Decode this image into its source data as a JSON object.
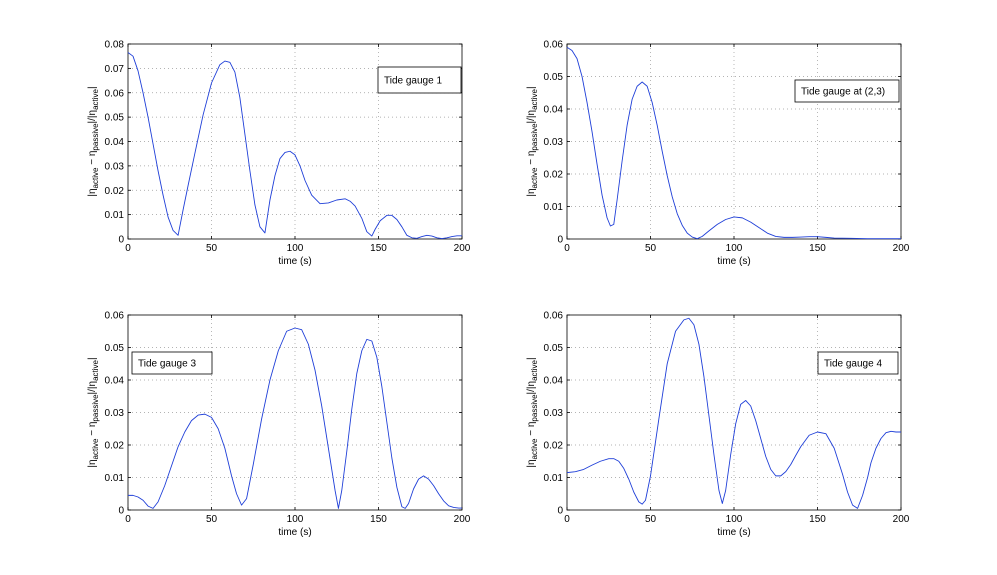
{
  "figure": {
    "background": "#ffffff",
    "line_color": "#1f3fd8"
  },
  "chart_data": [
    {
      "type": "line",
      "legend": "Tide gauge 1",
      "legend_placement": "top-right",
      "xlabel": "time (s)",
      "ylabel": "|η_active − η_passive|/|η_active|",
      "xlim": [
        0,
        200
      ],
      "ylim": [
        0,
        0.08
      ],
      "xticks": [
        0,
        50,
        100,
        150,
        200
      ],
      "yticks": [
        0,
        0.01,
        0.02,
        0.03,
        0.04,
        0.05,
        0.06,
        0.07,
        0.08
      ],
      "grid": true,
      "series": [
        {
          "x": [
            0,
            3,
            6,
            9,
            12,
            15,
            18,
            21,
            24,
            27,
            30,
            33,
            36,
            40,
            45,
            50,
            55,
            58,
            61,
            64,
            67,
            70,
            73,
            76,
            79,
            82,
            85,
            88,
            91,
            94,
            97,
            100,
            103,
            106,
            110,
            115,
            120,
            125,
            130,
            133,
            136,
            140,
            143,
            146,
            148,
            151,
            155,
            158,
            161,
            164,
            167,
            170,
            173,
            176,
            179,
            182,
            185,
            188,
            191,
            194,
            197,
            200
          ],
          "y": [
            0.0765,
            0.075,
            0.069,
            0.06,
            0.05,
            0.039,
            0.028,
            0.018,
            0.009,
            0.0035,
            0.0015,
            0.012,
            0.022,
            0.035,
            0.051,
            0.064,
            0.0715,
            0.073,
            0.0725,
            0.0685,
            0.058,
            0.043,
            0.028,
            0.014,
            0.005,
            0.0025,
            0.016,
            0.026,
            0.033,
            0.0355,
            0.036,
            0.0345,
            0.03,
            0.024,
            0.018,
            0.0145,
            0.0148,
            0.016,
            0.0165,
            0.0155,
            0.0135,
            0.0085,
            0.003,
            0.0012,
            0.004,
            0.0075,
            0.0097,
            0.0097,
            0.008,
            0.005,
            0.0015,
            0.0005,
            0.0003,
            0.001,
            0.0015,
            0.0012,
            0.0005,
            0.0002,
            0.0005,
            0.001,
            0.0013,
            0.0013
          ]
        }
      ]
    },
    {
      "type": "line",
      "legend": "Tide gauge at (2,3)",
      "legend_placement": "top-right",
      "xlabel": "time (s)",
      "ylabel": "|η_active − η_passive|/|η_active|",
      "xlim": [
        0,
        200
      ],
      "ylim": [
        0,
        0.06
      ],
      "xticks": [
        0,
        50,
        100,
        150,
        200
      ],
      "yticks": [
        0,
        0.01,
        0.02,
        0.03,
        0.04,
        0.05,
        0.06
      ],
      "grid": true,
      "series": [
        {
          "x": [
            0,
            3,
            6,
            9,
            12,
            15,
            18,
            21,
            24,
            26,
            28,
            30,
            33,
            36,
            39,
            42,
            45,
            48,
            51,
            54,
            57,
            60,
            63,
            66,
            69,
            72,
            75,
            78,
            81,
            85,
            90,
            95,
            100,
            105,
            110,
            115,
            120,
            125,
            130,
            135,
            140,
            145,
            150,
            155,
            160,
            170,
            180,
            190,
            200
          ],
          "y": [
            0.059,
            0.058,
            0.0555,
            0.05,
            0.042,
            0.033,
            0.023,
            0.0135,
            0.0065,
            0.004,
            0.0045,
            0.012,
            0.024,
            0.035,
            0.043,
            0.047,
            0.0483,
            0.047,
            0.042,
            0.035,
            0.027,
            0.0195,
            0.013,
            0.0078,
            0.0042,
            0.0018,
            0.0006,
            0.0001,
            0.0008,
            0.0025,
            0.0045,
            0.006,
            0.0068,
            0.0065,
            0.0052,
            0.0035,
            0.0018,
            0.0008,
            0.0005,
            0.0005,
            0.0006,
            0.0007,
            0.0007,
            0.0005,
            0.0003,
            0.0002,
            0.0001,
            0.0001,
            0.0001
          ]
        }
      ]
    },
    {
      "type": "line",
      "legend": "Tide gauge 3",
      "legend_placement": "top-left",
      "xlabel": "time (s)",
      "ylabel": "|η_active − η_passive|/|η_active|",
      "xlim": [
        0,
        200
      ],
      "ylim": [
        0,
        0.06
      ],
      "xticks": [
        0,
        50,
        100,
        150,
        200
      ],
      "yticks": [
        0,
        0.01,
        0.02,
        0.03,
        0.04,
        0.05,
        0.06
      ],
      "grid": true,
      "series": [
        {
          "x": [
            0,
            3,
            6,
            9,
            12,
            15,
            18,
            22,
            26,
            30,
            34,
            38,
            42,
            46,
            50,
            54,
            58,
            62,
            65,
            68,
            71,
            75,
            80,
            85,
            90,
            95,
            100,
            104,
            108,
            112,
            116,
            120,
            124,
            126,
            128,
            131,
            134,
            137,
            140,
            143,
            146,
            149,
            152,
            155,
            158,
            161,
            164,
            166,
            168,
            171,
            174,
            177,
            180,
            183,
            186,
            189,
            192,
            195,
            198,
            200
          ],
          "y": [
            0.0045,
            0.0045,
            0.004,
            0.003,
            0.0012,
            0.0005,
            0.0025,
            0.0075,
            0.0135,
            0.0195,
            0.024,
            0.0275,
            0.0292,
            0.0295,
            0.0285,
            0.025,
            0.019,
            0.0105,
            0.005,
            0.0015,
            0.0035,
            0.014,
            0.028,
            0.04,
            0.049,
            0.055,
            0.056,
            0.0555,
            0.051,
            0.043,
            0.032,
            0.019,
            0.006,
            0.0005,
            0.006,
            0.018,
            0.031,
            0.042,
            0.049,
            0.0525,
            0.052,
            0.047,
            0.038,
            0.027,
            0.016,
            0.007,
            0.001,
            0.0005,
            0.002,
            0.0065,
            0.0095,
            0.0105,
            0.0095,
            0.0075,
            0.005,
            0.0028,
            0.0013,
            0.0008,
            0.0006,
            0.0006
          ]
        }
      ]
    },
    {
      "type": "line",
      "legend": "Tide gauge 4",
      "legend_placement": "top-right",
      "xlabel": "time (s)",
      "ylabel": "|η_active − η_passive|/|η_active|",
      "xlim": [
        0,
        200
      ],
      "ylim": [
        0,
        0.06
      ],
      "xticks": [
        0,
        50,
        100,
        150,
        200
      ],
      "yticks": [
        0,
        0.01,
        0.02,
        0.03,
        0.04,
        0.05,
        0.06
      ],
      "grid": true,
      "series": [
        {
          "x": [
            0,
            5,
            10,
            15,
            20,
            25,
            28,
            31,
            34,
            37,
            40,
            43,
            45,
            47,
            50,
            55,
            60,
            65,
            70,
            73,
            76,
            79,
            82,
            85,
            88,
            91,
            93,
            95,
            98,
            101,
            104,
            107,
            110,
            113,
            116,
            119,
            122,
            125,
            128,
            131,
            134,
            137,
            140,
            145,
            150,
            155,
            160,
            165,
            168,
            171,
            174,
            177,
            180,
            182,
            185,
            188,
            191,
            194,
            197,
            200
          ],
          "y": [
            0.0115,
            0.0118,
            0.0125,
            0.0138,
            0.015,
            0.0158,
            0.0158,
            0.015,
            0.0128,
            0.0095,
            0.0055,
            0.0025,
            0.0018,
            0.003,
            0.0105,
            0.028,
            0.045,
            0.055,
            0.0585,
            0.059,
            0.057,
            0.051,
            0.041,
            0.029,
            0.017,
            0.006,
            0.002,
            0.006,
            0.017,
            0.0265,
            0.0325,
            0.0337,
            0.032,
            0.0275,
            0.022,
            0.0165,
            0.0125,
            0.0105,
            0.0105,
            0.0118,
            0.014,
            0.0168,
            0.0195,
            0.023,
            0.024,
            0.0235,
            0.019,
            0.011,
            0.0055,
            0.0015,
            0.0005,
            0.0045,
            0.01,
            0.0145,
            0.019,
            0.022,
            0.0238,
            0.0242,
            0.024,
            0.024
          ]
        }
      ]
    }
  ]
}
